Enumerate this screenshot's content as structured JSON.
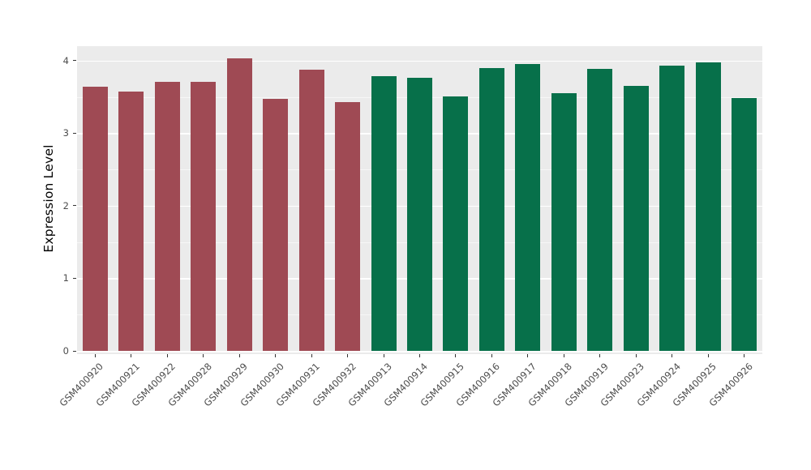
{
  "chart_data": {
    "type": "bar",
    "title": "",
    "xlabel": "",
    "ylabel": "Expression Level",
    "ylim": [
      0,
      4.2
    ],
    "yticks": [
      0,
      1,
      2,
      3,
      4
    ],
    "grid": true,
    "legend_position": "none",
    "categories": [
      "GSM400920",
      "GSM400921",
      "GSM400922",
      "GSM400928",
      "GSM400929",
      "GSM400930",
      "GSM400931",
      "GSM400932",
      "GSM400913",
      "GSM400914",
      "GSM400915",
      "GSM400916",
      "GSM400917",
      "GSM400918",
      "GSM400919",
      "GSM400923",
      "GSM400924",
      "GSM400925",
      "GSM400926"
    ],
    "values": [
      3.64,
      3.58,
      3.71,
      3.71,
      4.03,
      3.47,
      3.88,
      3.43,
      3.79,
      3.76,
      3.51,
      3.9,
      3.95,
      3.55,
      3.89,
      3.65,
      3.93,
      3.98,
      3.49
    ],
    "groups": [
      "A",
      "A",
      "A",
      "A",
      "A",
      "A",
      "A",
      "A",
      "B",
      "B",
      "B",
      "B",
      "B",
      "B",
      "B",
      "B",
      "B",
      "B",
      "B"
    ],
    "group_colors": {
      "A": "#9F4A54",
      "B": "#07704A"
    },
    "panel_background": "#EBEBEB",
    "gridline_color": "#FFFFFF",
    "tick_label_color": "#4D4D4D",
    "axis_title_color": "#000000",
    "tick_mark_color": "#333333"
  }
}
